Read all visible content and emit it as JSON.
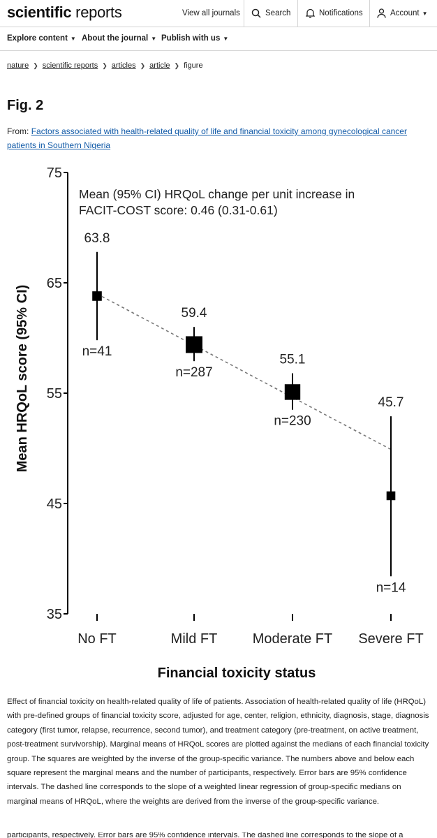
{
  "header": {
    "logo_bold": "scientific",
    "logo_regular": " reports",
    "view_all": "View all journals",
    "search": "Search",
    "notifications": "Notifications",
    "account": "Account"
  },
  "subnav": {
    "explore": "Explore content",
    "about": "About the journal",
    "publish": "Publish with us"
  },
  "breadcrumb": {
    "items": [
      "nature",
      "scientific reports",
      "articles",
      "article",
      "figure"
    ]
  },
  "figure": {
    "title": "Fig. 2",
    "from_label": "From:",
    "from_link": "Factors associated with health-related quality of life and financial toxicity among gynecological cancer patients in Southern Nigeria"
  },
  "chart_data": {
    "type": "scatter",
    "ylabel": "Mean HRQoL score (95% CI)",
    "xlabel": "Financial toxicity status",
    "categories": [
      "No FT",
      "Mild FT",
      "Moderate FT",
      "Severe FT"
    ],
    "ylim": [
      35,
      75
    ],
    "yticks": [
      35,
      45,
      55,
      65,
      75
    ],
    "annotation_line1": "Mean (95% CI) HRQoL change per unit increase in",
    "annotation_line2": "FACIT-COST score: 0.46 (0.31-0.61)",
    "points": [
      {
        "category": "No FT",
        "mean": 63.8,
        "mean_label": "63.8",
        "n_label": "n=41",
        "ci": [
          59.8,
          67.8
        ],
        "weight": 0.18
      },
      {
        "category": "Mild FT",
        "mean": 59.4,
        "mean_label": "59.4",
        "n_label": "n=287",
        "ci": [
          57.9,
          61.0
        ],
        "weight": 0.7
      },
      {
        "category": "Moderate FT",
        "mean": 55.1,
        "mean_label": "55.1",
        "n_label": "n=230",
        "ci": [
          53.5,
          56.8
        ],
        "weight": 0.62
      },
      {
        "category": "Severe FT",
        "mean": 45.7,
        "mean_label": "45.7",
        "n_label": "n=14",
        "ci": [
          38.4,
          52.9
        ],
        "weight": 0.13
      }
    ],
    "fit_line": {
      "x_start": "No FT",
      "y_start": 64.0,
      "x_end": "Severe FT",
      "y_end": 49.9
    },
    "colors": {
      "marker": "#000000",
      "fit_line": "#777777"
    }
  },
  "caption": {
    "text": "Effect of financial toxicity on health-related quality of life of patients. Association of health-related quality of life (HRQoL) with pre-defined groups of financial toxicity score, adjusted for age, center, religion, ethnicity, diagnosis, stage, diagnosis category (first tumor, relapse, recurrence, second tumor), and treatment category (pre-treatment, on active treatment, post-treatment survivorship). Marginal means of HRQoL scores are plotted against the medians of each financial toxicity group. The squares are weighted by the inverse of the group-specific variance. The numbers above and below each square represent the marginal means and the number of participants, respectively. Error bars are 95% confidence intervals. The dashed line corresponds to the slope of a weighted linear regression of group-specific medians on marginal means of HRQoL, where the weights are derived from the inverse of the group-specific variance.",
    "cutoff": "participants, respectively. Error bars are 95% confidence intervals. The dashed line corresponds to the slope of a"
  }
}
